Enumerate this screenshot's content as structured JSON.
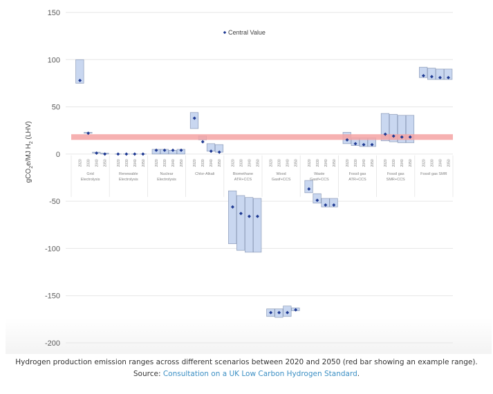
{
  "chart_data": {
    "type": "range-bar",
    "title": "",
    "ylabel": "gCO2e/MJ H2 (LHV)",
    "ylabel_parts": {
      "main": "gCO",
      "sub1": "2",
      "mid": "e/MJ H",
      "sub2": "2",
      "end": " (LHV)"
    },
    "ylim": [
      -200,
      150
    ],
    "yticks": [
      150,
      100,
      50,
      0,
      -50,
      -100,
      -150,
      -200
    ],
    "grid": true,
    "legend": {
      "label": "Central Value",
      "placement": "top-center"
    },
    "sub_categories": [
      "2020",
      "2030",
      "2040",
      "2050"
    ],
    "reference_band": {
      "low": 15,
      "high": 21,
      "color": "#f4a3a3"
    },
    "colors": {
      "bar_fill": "#c9d7f0",
      "bar_stroke": "#8c9bb8",
      "marker": "#1f3a93",
      "grid": "#e6e6e6"
    },
    "categories": [
      {
        "name": [
          "Grid",
          "Electrolysis"
        ],
        "series": [
          {
            "year": "2020",
            "low": 75,
            "high": 100,
            "central": 78
          },
          {
            "year": "2030",
            "low": 22,
            "high": 23,
            "central": 22
          },
          {
            "year": "2040",
            "low": 1,
            "high": 2,
            "central": 1
          },
          {
            "year": "2050",
            "low": 0,
            "high": 1,
            "central": 0
          }
        ]
      },
      {
        "name": [
          "Renewable",
          "Electrolysis"
        ],
        "series": [
          {
            "year": "2020",
            "low": 0,
            "high": 0,
            "central": 0
          },
          {
            "year": "2030",
            "low": 0,
            "high": 0,
            "central": 0
          },
          {
            "year": "2040",
            "low": 0,
            "high": 0,
            "central": 0
          },
          {
            "year": "2050",
            "low": 0,
            "high": 0,
            "central": 0
          }
        ]
      },
      {
        "name": [
          "Nuclear",
          "Electrolysis"
        ],
        "series": [
          {
            "year": "2020",
            "low": 0,
            "high": 5,
            "central": 4
          },
          {
            "year": "2030",
            "low": 0,
            "high": 5,
            "central": 4
          },
          {
            "year": "2040",
            "low": 0,
            "high": 4,
            "central": 4
          },
          {
            "year": "2050",
            "low": 0,
            "high": 5,
            "central": 4
          }
        ]
      },
      {
        "name": [
          "Chlor-Alkali"
        ],
        "series": [
          {
            "year": "2020",
            "low": 27,
            "high": 44,
            "central": 38
          },
          {
            "year": "2030",
            "low": 15,
            "high": 19,
            "central": 13
          },
          {
            "year": "2040",
            "low": 3,
            "high": 11,
            "central": 3
          },
          {
            "year": "2050",
            "low": 2,
            "high": 10,
            "central": 2
          }
        ]
      },
      {
        "name": [
          "Biomethane",
          "ATR+CCS"
        ],
        "series": [
          {
            "year": "2020",
            "low": -95,
            "high": -39,
            "central": -56
          },
          {
            "year": "2030",
            "low": -102,
            "high": -44,
            "central": -63
          },
          {
            "year": "2040",
            "low": -104,
            "high": -46,
            "central": -66
          },
          {
            "year": "2050",
            "low": -104,
            "high": -47,
            "central": -66
          }
        ]
      },
      {
        "name": [
          "Wood",
          "Gasif+CCS"
        ],
        "series": [
          {
            "year": "2020",
            "low": -172,
            "high": -164,
            "central": -168
          },
          {
            "year": "2030",
            "low": -173,
            "high": -164,
            "central": -168
          },
          {
            "year": "2040",
            "low": -172,
            "high": -161,
            "central": -168
          },
          {
            "year": "2050",
            "low": -166,
            "high": -163,
            "central": -165
          }
        ]
      },
      {
        "name": [
          "Waste",
          "Gasif+CCS"
        ],
        "series": [
          {
            "year": "2020",
            "low": -41,
            "high": -28,
            "central": -37
          },
          {
            "year": "2030",
            "low": -52,
            "high": -42,
            "central": -49
          },
          {
            "year": "2040",
            "low": -56,
            "high": -47,
            "central": -54
          },
          {
            "year": "2050",
            "low": -56,
            "high": -47,
            "central": -54
          }
        ]
      },
      {
        "name": [
          "Fossil gas",
          "ATR+CCS"
        ],
        "series": [
          {
            "year": "2020",
            "low": 11,
            "high": 23,
            "central": 15
          },
          {
            "year": "2030",
            "low": 9,
            "high": 17,
            "central": 11
          },
          {
            "year": "2040",
            "low": 8,
            "high": 17,
            "central": 10
          },
          {
            "year": "2050",
            "low": 8,
            "high": 17,
            "central": 10
          }
        ]
      },
      {
        "name": [
          "Fossil gas",
          "SMR+CCS"
        ],
        "series": [
          {
            "year": "2020",
            "low": 14,
            "high": 43,
            "central": 21
          },
          {
            "year": "2030",
            "low": 13,
            "high": 42,
            "central": 19
          },
          {
            "year": "2040",
            "low": 12,
            "high": 41,
            "central": 18
          },
          {
            "year": "2050",
            "low": 12,
            "high": 41,
            "central": 18
          }
        ]
      },
      {
        "name": [
          "Fossil gas SMR"
        ],
        "series": [
          {
            "year": "2020",
            "low": 81,
            "high": 92,
            "central": 83
          },
          {
            "year": "2030",
            "low": 79,
            "high": 91,
            "central": 82
          },
          {
            "year": "2040",
            "low": 79,
            "high": 90,
            "central": 81
          },
          {
            "year": "2050",
            "low": 79,
            "high": 90,
            "central": 81
          }
        ]
      }
    ]
  },
  "caption": {
    "text": "Hydrogen production emission ranges across different scenarios between 2020 and 2050 (red bar showing an example range).",
    "source_prefix": "Source: ",
    "source_link": "Consultation on a UK Low Carbon Hydrogen Standard",
    "source_suffix": "."
  }
}
